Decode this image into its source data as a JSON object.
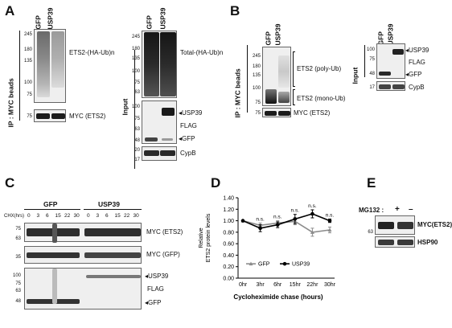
{
  "panels": {
    "A": {
      "letter": "A",
      "ip_label": "IP : MYC beads",
      "input_label": "Input",
      "lanes_left": [
        "GFP",
        "USP39"
      ],
      "lanes_right": [
        "GFP",
        "USP39"
      ],
      "mw_left": [
        "245",
        "180",
        "135",
        "100",
        "75"
      ],
      "mw_left_myc": "75",
      "mw_right": [
        "245",
        "180",
        "135",
        "100",
        "75",
        "63"
      ],
      "mw_right_mid": [
        "100",
        "75",
        "63",
        "48"
      ],
      "mw_right_cyp": [
        "20",
        "17"
      ],
      "label_ets2_ub": "ETS2-(HA-Ub)n",
      "label_myc": "MYC (ETS2)",
      "label_total_ub": "Total-(HA-Ub)n",
      "label_usp39": "USP39",
      "label_flag": "FLAG",
      "label_gfp": "GFP",
      "label_cypb": "CypB"
    },
    "B": {
      "letter": "B",
      "ip_label": "IP : MYC beads",
      "input_label": "Input",
      "lanes_left": [
        "GFP",
        "USP39"
      ],
      "lanes_right": [
        "GFP",
        "USP39"
      ],
      "mw_left": [
        "245",
        "180",
        "135",
        "100",
        "75",
        "75"
      ],
      "mw_right": [
        "100",
        "75",
        "48",
        "17"
      ],
      "label_poly": "ETS2 (poly-Ub)",
      "label_mono": "ETS2 (mono-Ub)",
      "label_myc": "MYC (ETS2)",
      "label_usp39": "USP39",
      "label_flag": "FLAG",
      "label_gfp": "GFP",
      "label_cypb": "CypB"
    },
    "C": {
      "letter": "C",
      "group_gfp": "GFP",
      "group_usp39": "USP39",
      "chx_label": "CHX(hrs)",
      "timepoints": [
        "0",
        "3",
        "6",
        "15",
        "22",
        "30"
      ],
      "mw_myc": [
        "75",
        "63"
      ],
      "mw_gfp": "35",
      "mw_flag": [
        "100",
        "75",
        "63",
        "48"
      ],
      "label_myc_ets2": "MYC (ETS2)",
      "label_myc_gfp": "MYC (GFP)",
      "label_usp39": "USP39",
      "label_flag": "FLAG",
      "label_gfp": "GFP"
    },
    "E": {
      "letter": "E",
      "mg132_label": "MG132 :",
      "plus": "+",
      "minus": "–",
      "mw": "63",
      "label_myc": "MYC(ETS2)",
      "label_hsp90": "HSP90"
    }
  },
  "chart_data": {
    "letter": "D",
    "type": "line",
    "title": "",
    "xlabel": "Cycloheximide chase (hours)",
    "ylabel": "Relative\nETS2 protein levels",
    "categories": [
      "0hr",
      "3hr",
      "6hr",
      "15hr",
      "22hr",
      "30hr"
    ],
    "ylim": [
      0,
      1.4
    ],
    "yticks": [
      "0.00",
      "0.20",
      "0.40",
      "0.60",
      "0.80",
      "1.00",
      "1.20",
      "1.40"
    ],
    "annotations": [
      "n.s.",
      "n.s.",
      "n.s.",
      "n.s.",
      "n.s."
    ],
    "legend_position": "bottom-left",
    "series": [
      {
        "name": "GFP",
        "color": "#8c8c8c",
        "values": [
          1.0,
          0.92,
          0.96,
          0.99,
          0.8,
          0.84
        ],
        "errors": [
          0.0,
          0.04,
          0.04,
          0.06,
          0.07,
          0.05
        ]
      },
      {
        "name": "USP39",
        "color": "#000000",
        "values": [
          1.0,
          0.87,
          0.93,
          1.03,
          1.12,
          1.0
        ],
        "errors": [
          0.0,
          0.06,
          0.05,
          0.08,
          0.07,
          0.03
        ]
      }
    ]
  }
}
